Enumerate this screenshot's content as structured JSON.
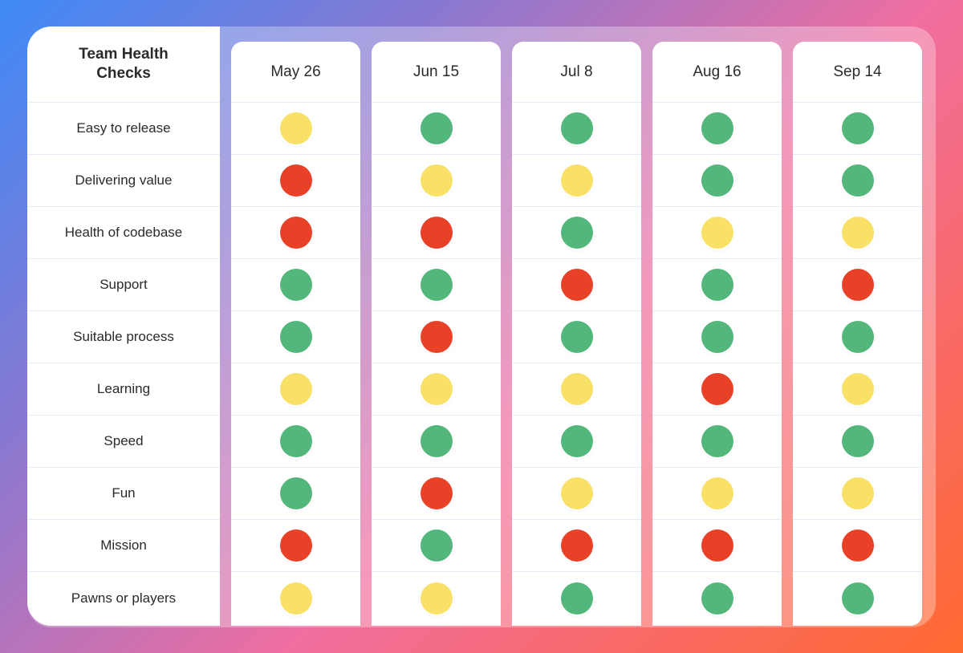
{
  "title": "Team Health Checks",
  "colors": {
    "green": "#53b77c",
    "yellow": "#f9e066",
    "red": "#e94128"
  },
  "categories": [
    "Easy to release",
    "Delivering value",
    "Health of codebase",
    "Support",
    "Suitable process",
    "Learning",
    "Speed",
    "Fun",
    "Mission",
    "Pawns or players"
  ],
  "dates": [
    "May 26",
    "Jun 15",
    "Jul 8",
    "Aug 16",
    "Sep 14"
  ],
  "ratings": [
    [
      "yellow",
      "green",
      "green",
      "green",
      "green"
    ],
    [
      "red",
      "yellow",
      "yellow",
      "green",
      "green"
    ],
    [
      "red",
      "red",
      "green",
      "yellow",
      "yellow"
    ],
    [
      "green",
      "green",
      "red",
      "green",
      "red"
    ],
    [
      "green",
      "red",
      "green",
      "green",
      "green"
    ],
    [
      "yellow",
      "yellow",
      "yellow",
      "red",
      "yellow"
    ],
    [
      "green",
      "green",
      "green",
      "green",
      "green"
    ],
    [
      "green",
      "red",
      "yellow",
      "yellow",
      "yellow"
    ],
    [
      "red",
      "green",
      "red",
      "red",
      "red"
    ],
    [
      "yellow",
      "yellow",
      "green",
      "green",
      "green"
    ]
  ]
}
